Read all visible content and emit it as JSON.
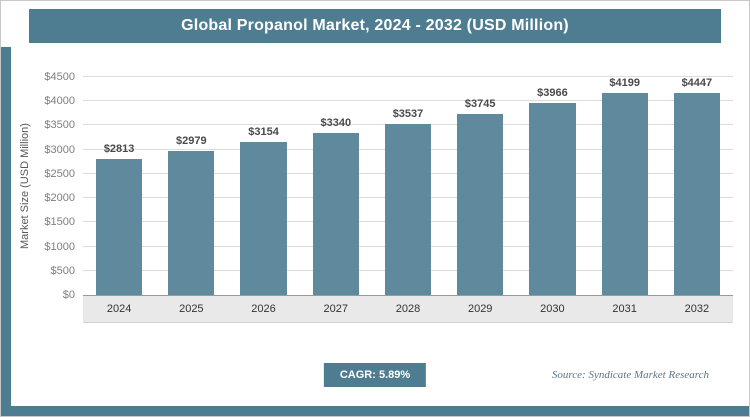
{
  "header": {
    "title": "Global Propanol Market, 2024 - 2032 (USD Million)"
  },
  "chart_data": {
    "type": "bar",
    "title": "Global Propanol Market, 2024 - 2032 (USD Million)",
    "categories": [
      "2024",
      "2025",
      "2026",
      "2027",
      "2028",
      "2029",
      "2030",
      "2031",
      "2032"
    ],
    "values": [
      2813,
      2979,
      3154,
      3340,
      3537,
      3745,
      3966,
      4199,
      4447
    ],
    "value_prefix": "$",
    "xlabel": "",
    "ylabel": "Market Size (USD Million)",
    "ylim": [
      0,
      4500
    ],
    "ytick_step": 500,
    "ytick_prefix": "$",
    "grid": true,
    "legend": "none"
  },
  "footer": {
    "cagr_label": "CAGR: 5.89%",
    "source": "Source: Syndicate Market Research"
  },
  "colors": {
    "accent": "#4e7d92",
    "bar": "#5f8a9d",
    "grid": "#dcdcdc"
  }
}
